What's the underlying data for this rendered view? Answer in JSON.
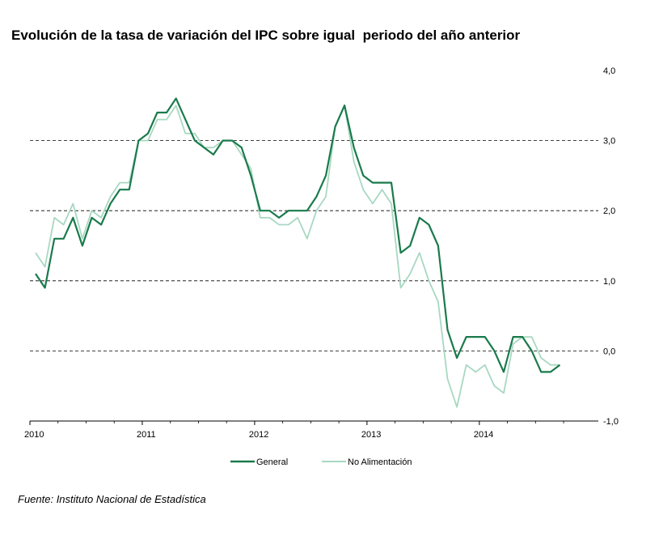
{
  "chart_data": {
    "type": "line",
    "title": "Evolución de la tasa de variación del IPC sobre igual  periodo del año anterior",
    "source": "Fuente: Instituto Nacional de Estadística",
    "xlabel": "",
    "ylabel": "",
    "ylim": [
      -1.0,
      4.0
    ],
    "yticks": [
      "4,0",
      "3,0",
      "2,0",
      "1,0",
      "0,0",
      "-1,0"
    ],
    "yaxis_position": "right",
    "grid": "dashed horizontal",
    "xtick_labels": [
      "2010",
      "2011",
      "2012",
      "2013",
      "2014"
    ],
    "x_start": "2010-01",
    "legend_position": "bottom-center",
    "series": [
      {
        "name": "General",
        "color": "#1a7a4c",
        "values": [
          1.1,
          0.9,
          1.6,
          1.6,
          1.9,
          1.5,
          1.9,
          1.8,
          2.1,
          2.3,
          2.3,
          3.0,
          3.1,
          3.4,
          3.4,
          3.6,
          3.3,
          3.0,
          2.9,
          2.8,
          3.0,
          3.0,
          2.9,
          2.5,
          2.0,
          2.0,
          1.9,
          2.0,
          2.0,
          2.0,
          2.2,
          2.5,
          3.2,
          3.5,
          2.9,
          2.5,
          2.4,
          2.4,
          2.4,
          1.4,
          1.5,
          1.9,
          1.8,
          1.5,
          0.3,
          -0.1,
          0.2,
          0.2,
          0.2,
          0.0,
          -0.3,
          0.2,
          0.2,
          0.0,
          -0.3,
          -0.3,
          -0.2
        ]
      },
      {
        "name": "No Alimentación",
        "color": "#a8d8c2",
        "values": [
          1.4,
          1.2,
          1.9,
          1.8,
          2.1,
          1.6,
          2.0,
          1.9,
          2.2,
          2.4,
          2.4,
          3.0,
          3.0,
          3.3,
          3.3,
          3.5,
          3.1,
          3.1,
          2.9,
          2.9,
          3.0,
          3.0,
          2.8,
          2.6,
          1.9,
          1.9,
          1.8,
          1.8,
          1.9,
          1.6,
          2.0,
          2.2,
          3.2,
          3.5,
          2.7,
          2.3,
          2.1,
          2.3,
          2.1,
          0.9,
          1.1,
          1.4,
          1.0,
          0.7,
          -0.4,
          -0.8,
          -0.2,
          -0.3,
          -0.2,
          -0.5,
          -0.6,
          0.1,
          0.2,
          0.2,
          -0.1,
          -0.2,
          -0.2
        ]
      }
    ]
  }
}
